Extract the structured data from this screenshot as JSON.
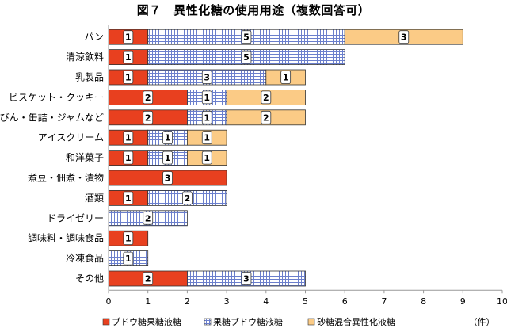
{
  "chart_data": {
    "type": "bar",
    "orientation": "horizontal",
    "stacked": true,
    "title": "図７　異性化糖の使用用途（複数回答可）",
    "xlabel": "（件）",
    "ylabel": "",
    "xlim": [
      0,
      10
    ],
    "x_ticks": [
      "0",
      "1",
      "2",
      "3",
      "4",
      "5",
      "6",
      "7",
      "8",
      "9",
      "10"
    ],
    "grid": false,
    "legend_position": "bottom",
    "categories": [
      "パン",
      "清涼飲料",
      "乳製品",
      "ビスケット・クッキー",
      "びん・缶詰・ジャムなど",
      "アイスクリーム",
      "和洋菓子",
      "煮豆・佃煮・漬物",
      "酒類",
      "ドライゼリー",
      "調味料・調味食品",
      "冷凍食品",
      "その他"
    ],
    "series": [
      {
        "name": "ブドウ糖果糖液糖",
        "color": "#e8401f",
        "pattern": "solid",
        "values": [
          1,
          1,
          1,
          2,
          2,
          1,
          1,
          3,
          1,
          0,
          1,
          0,
          2
        ]
      },
      {
        "name": "果糖ブドウ糖液糖",
        "color": "#7b8fd6",
        "pattern": "grid",
        "values": [
          5,
          5,
          3,
          1,
          1,
          1,
          1,
          0,
          2,
          2,
          0,
          1,
          3
        ]
      },
      {
        "name": "砂糖混合異性化液糖",
        "color": "#fbcb86",
        "pattern": "solid",
        "values": [
          3,
          0,
          1,
          2,
          2,
          1,
          1,
          0,
          0,
          0,
          0,
          0,
          0
        ]
      }
    ]
  }
}
